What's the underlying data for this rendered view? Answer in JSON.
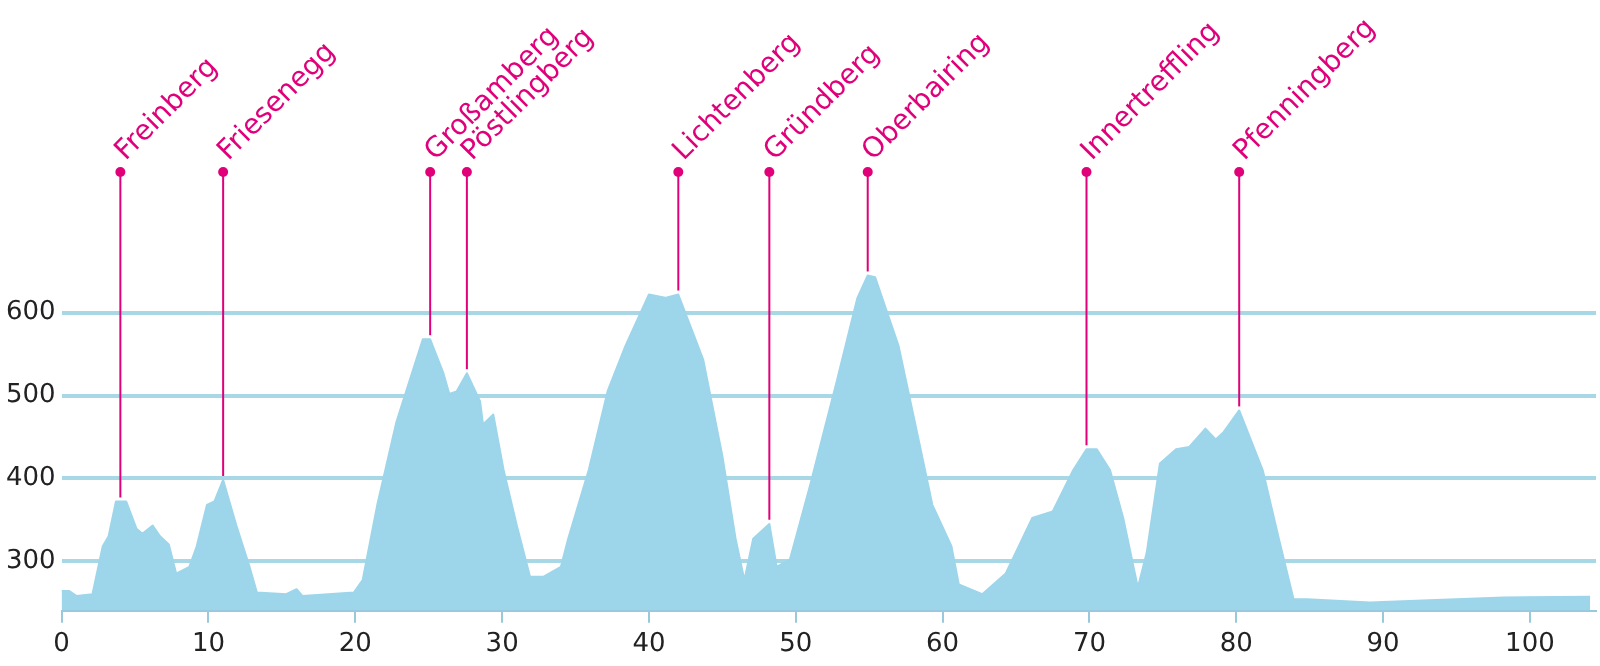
{
  "chart_data": {
    "type": "area",
    "x": [
      0,
      0.5,
      1,
      2.1,
      2.8,
      3.2,
      3.7,
      4.4,
      5.1,
      5.5,
      6.2,
      6.7,
      7.3,
      7.8,
      8.7,
      9.2,
      9.9,
      10.4,
      11,
      11.9,
      12.8,
      13.3,
      15.3,
      16,
      16.4,
      19.9,
      20.5,
      21.5,
      22.8,
      23.7,
      24.6,
      25.1,
      26,
      26.4,
      26.9,
      27.6,
      28.5,
      28.7,
      29.4,
      30.1,
      31,
      31.9,
      32.8,
      34,
      34.5,
      35.9,
      37.2,
      38.4,
      40,
      41.1,
      42,
      43.7,
      45,
      45.9,
      46.5,
      47.1,
      48.2,
      48.7,
      49.6,
      51,
      52.8,
      54.2,
      54.9,
      55.4,
      57,
      58.3,
      59.3,
      60.6,
      61.1,
      62.7,
      64.3,
      66.1,
      67.5,
      68.9,
      69.8,
      70.5,
      71.4,
      72.3,
      73.3,
      73.9,
      74.8,
      75.9,
      76.8,
      77.9,
      78.6,
      79.1,
      80.2,
      81.8,
      82.9,
      83.9,
      84.8,
      86.8,
      89.1,
      93.6,
      98.2,
      104.1
    ],
    "values": [
      264,
      264,
      258,
      260,
      318,
      330,
      372,
      372,
      339,
      333,
      343,
      330,
      320,
      285,
      293,
      318,
      368,
      372,
      398,
      343,
      293,
      262,
      260,
      266,
      258,
      262,
      277,
      368,
      468,
      518,
      568,
      568,
      527,
      502,
      505,
      527,
      493,
      465,
      477,
      410,
      343,
      281,
      281,
      293,
      327,
      410,
      506,
      560,
      622,
      618,
      622,
      543,
      427,
      327,
      277,
      327,
      345,
      293,
      302,
      393,
      518,
      618,
      645,
      643,
      560,
      452,
      368,
      318,
      272,
      260,
      285,
      352,
      360,
      410,
      435,
      435,
      410,
      352,
      268,
      310,
      418,
      435,
      438,
      460,
      447,
      455,
      482,
      410,
      327,
      254,
      254,
      252,
      250,
      253,
      256,
      257
    ],
    "color": "#9dd5ea",
    "xlim": [
      0,
      104.5
    ],
    "ylim": [
      240,
      770
    ],
    "xticks": [
      0,
      10,
      20,
      30,
      40,
      50,
      60,
      70,
      80,
      90,
      100
    ],
    "yticks": [
      300,
      400,
      500,
      600
    ],
    "grid": "y",
    "annotations": [
      {
        "text": "Freinberg",
        "x": 4,
        "y": 372
      },
      {
        "text": "Friesenegg",
        "x": 11,
        "y": 398
      },
      {
        "text": "Großamberg",
        "x": 25.1,
        "y": 568
      },
      {
        "text": "Pöstlingberg",
        "x": 27.6,
        "y": 527
      },
      {
        "text": "Lichtenberg",
        "x": 42,
        "y": 622
      },
      {
        "text": "Gründberg",
        "x": 48.2,
        "y": 345
      },
      {
        "text": "Oberbairing",
        "x": 54.9,
        "y": 645
      },
      {
        "text": "Innertreffling",
        "x": 69.8,
        "y": 435
      },
      {
        "text": "Pfenningberg",
        "x": 80.2,
        "y": 482
      }
    ]
  }
}
